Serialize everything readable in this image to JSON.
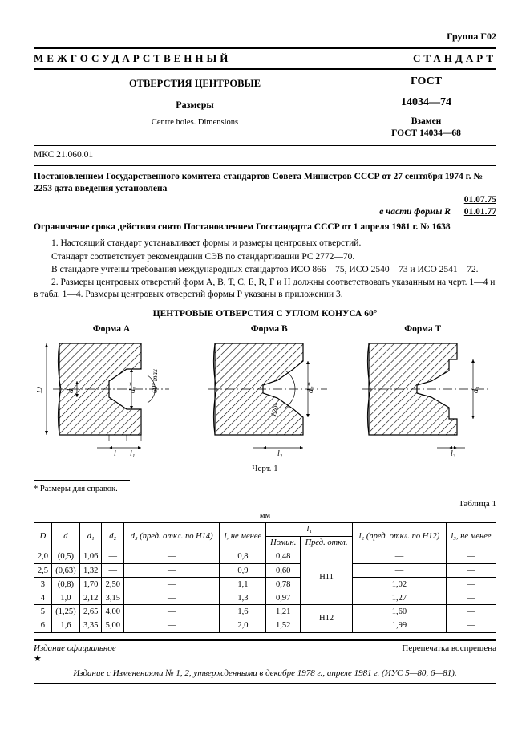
{
  "group": "Группа Г02",
  "banner": "МЕЖГОСУДАРСТВЕННЫЙ СТАНДАРТ",
  "title_ru": "ОТВЕРСТИЯ ЦЕНТРОВЫЕ",
  "subtitle_ru": "Размеры",
  "title_en": "Centre holes. Dimensions",
  "gost": "ГОСТ",
  "gost_num": "14034—74",
  "replace_1": "Взамен",
  "replace_2": "ГОСТ 14034—68",
  "mks": "МКС 21.060.01",
  "decree": "Постановлением Государственного комитета стандартов Совета Министров СССР от 27 сентября 1974 г. № 2253 дата введения установлена",
  "date_prefix": "в части формы R",
  "date1": "01.07.75",
  "date2": "01.01.77",
  "limit": "Ограничение срока действия снято Постановлением Госстандарта СССР от 1 апреля 1981 г. № 1638",
  "para1": "1. Настоящий стандарт устанавливает формы и размеры центровых отверстий.",
  "para2": "Стандарт соответствует рекомендации СЭВ по стандартизации РС 2772—70.",
  "para3": "В стандарте учтены требования международных стандартов ИСО 866—75, ИСО 2540—73 и ИСО 2541—72.",
  "para4": "2. Размеры центровых отверстий форм A, B, T, C, E, R, F и H должны соответствовать указанным на черт. 1—4 и в табл. 1—4. Размеры центровых отверстий формы P указаны в приложении 3.",
  "section_title": "ЦЕНТРОВЫЕ ОТВЕРСТИЯ С УГЛОМ КОНУСА 60°",
  "forms": {
    "a": "Форма A",
    "b": "Форма B",
    "t": "Форма T"
  },
  "fig_caption": "Черт. 1",
  "footnote_marker": "*",
  "footnote": "* Размеры для справок.",
  "table_label": "Таблица 1",
  "mm": "мм",
  "headers": {
    "D": "D",
    "d": "d",
    "d1": "d₁",
    "d2": "d₂",
    "d3": "d₃ (пред. откл. по H14)",
    "l": "l, не менее",
    "l1": "l₁",
    "l1_nom": "Номин.",
    "l1_tol": "Пред. откл.",
    "l2": "l₂ (пред. откл. по H12)",
    "l3": "l₃, не менее"
  },
  "rows": [
    {
      "D": "2,0",
      "d": "(0,5)",
      "d1": "1,06",
      "d2": "—",
      "d3": "—",
      "l": "0,8",
      "l1n": "0,48",
      "l1t": "H11",
      "l2": "—",
      "l3": "—"
    },
    {
      "D": "2,5",
      "d": "(0,63)",
      "d1": "1,32",
      "d2": "—",
      "d3": "—",
      "l": "0,9",
      "l1n": "0,60",
      "l1t": "",
      "l2": "—",
      "l3": "—"
    },
    {
      "D": "3",
      "d": "(0,8)",
      "d1": "1,70",
      "d2": "2,50",
      "d3": "—",
      "l": "1,1",
      "l1n": "0,78",
      "l1t": "",
      "l2": "1,02",
      "l3": "—"
    },
    {
      "D": "4",
      "d": "1,0",
      "d1": "2,12",
      "d2": "3,15",
      "d3": "—",
      "l": "1,3",
      "l1n": "0,97",
      "l1t": "",
      "l2": "1,27",
      "l3": "—"
    },
    {
      "D": "5",
      "d": "(1,25)",
      "d1": "2,65",
      "d2": "4,00",
      "d3": "—",
      "l": "1,6",
      "l1n": "1,21",
      "l1t": "H12",
      "l2": "1,60",
      "l3": "—"
    },
    {
      "D": "6",
      "d": "1,6",
      "d1": "3,35",
      "d2": "5,00",
      "d3": "—",
      "l": "2,0",
      "l1n": "1,52",
      "l1t": "",
      "l2": "1,99",
      "l3": "—"
    }
  ],
  "footer_left": "Издание официальное",
  "footer_right": "Перепечатка воспрещена",
  "star": "★",
  "amend": "Издание с Изменениями № 1, 2, утвержденными в декабре 1978 г., апреле 1981 г. (ИУС 5—80, 6—81).",
  "svg_labels": {
    "D": "D",
    "d": "d",
    "d1s": "d₁*",
    "d2s": "d₂*",
    "d3": "d₃",
    "l": "l",
    "l1": "l₁",
    "l2": "l₂",
    "l3": "l₃",
    "ang60": "60° max",
    "ang120": "120°"
  },
  "colors": {
    "hatch": "#000000",
    "bg": "#ffffff"
  }
}
